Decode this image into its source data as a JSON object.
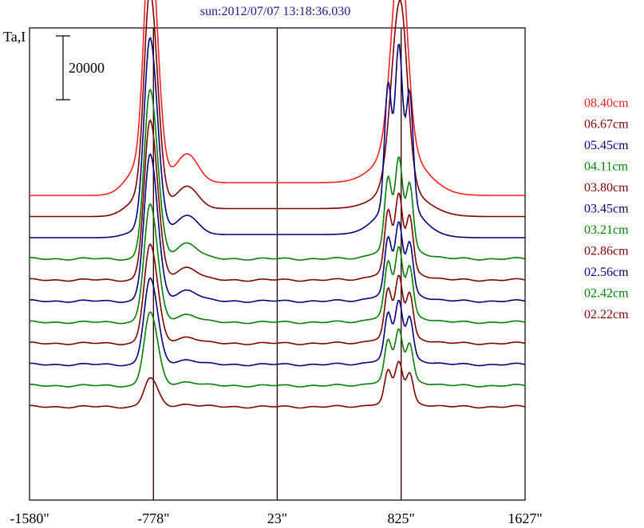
{
  "chart_data": {
    "type": "line",
    "title": "sun:2012/07/07 13:18:36.030",
    "ylabel": "Ta,I",
    "scale_bar_label": "20000",
    "x_ticks": [
      "-1580\"",
      "-778\"",
      "23\"",
      "825\"",
      "1627\""
    ],
    "x_tick_values": [
      -1580,
      -778,
      23,
      825,
      1627
    ],
    "vertical_lines_at": [
      -778,
      23,
      825
    ],
    "xlim": [
      -1580,
      1627
    ],
    "series": [
      {
        "name": "08.40cm",
        "color": "#ff2020",
        "baseline": 0,
        "left_peak": 71000,
        "left_bump": 9000,
        "plateau": 4000,
        "right_peak": 61000,
        "right_peak_count": 1
      },
      {
        "name": "06.67cm",
        "color": "#800000",
        "baseline": 0,
        "left_peak": 64000,
        "left_bump": 7000,
        "plateau": 2500,
        "right_peak": 58000,
        "right_peak_count": 1
      },
      {
        "name": "05.45cm",
        "color": "#00007f",
        "baseline": 0,
        "left_peak": 60000,
        "left_bump": 6000,
        "plateau": 1000,
        "right_peak": 48000,
        "right_peak_count": 3
      },
      {
        "name": "04.11cm",
        "color": "#007f00",
        "baseline": 0,
        "left_peak": 53000,
        "left_bump": 5000,
        "plateau": 0,
        "right_peak": 27000,
        "right_peak_count": 3
      },
      {
        "name": "03.80cm",
        "color": "#800000",
        "baseline": 0,
        "left_peak": 50000,
        "left_bump": 4000,
        "plateau": 0,
        "right_peak": 23000,
        "right_peak_count": 3
      },
      {
        "name": "03.45cm",
        "color": "#00007f",
        "baseline": 0,
        "left_peak": 46000,
        "left_bump": 3500,
        "plateau": 0,
        "right_peak": 21000,
        "right_peak_count": 3
      },
      {
        "name": "03.21cm",
        "color": "#007f00",
        "baseline": 0,
        "left_peak": 37000,
        "left_bump": 2500,
        "plateau": 0,
        "right_peak": 20000,
        "right_peak_count": 3
      },
      {
        "name": "02.86cm",
        "color": "#800000",
        "baseline": 0,
        "left_peak": 31000,
        "left_bump": 2000,
        "plateau": 0,
        "right_peak": 18000,
        "right_peak_count": 3
      },
      {
        "name": "02.56cm",
        "color": "#00007f",
        "baseline": 0,
        "left_peak": 27000,
        "left_bump": 1500,
        "plateau": 0,
        "right_peak": 17000,
        "right_peak_count": 3
      },
      {
        "name": "02.42cm",
        "color": "#007f00",
        "baseline": 0,
        "left_peak": 23000,
        "left_bump": 1200,
        "plateau": 0,
        "right_peak": 15000,
        "right_peak_count": 3
      },
      {
        "name": "02.22cm",
        "color": "#800000",
        "baseline": 0,
        "left_peak": 9000,
        "left_bump": 800,
        "plateau": 0,
        "right_peak": 12000,
        "right_peak_count": 3
      }
    ],
    "grid": false
  }
}
